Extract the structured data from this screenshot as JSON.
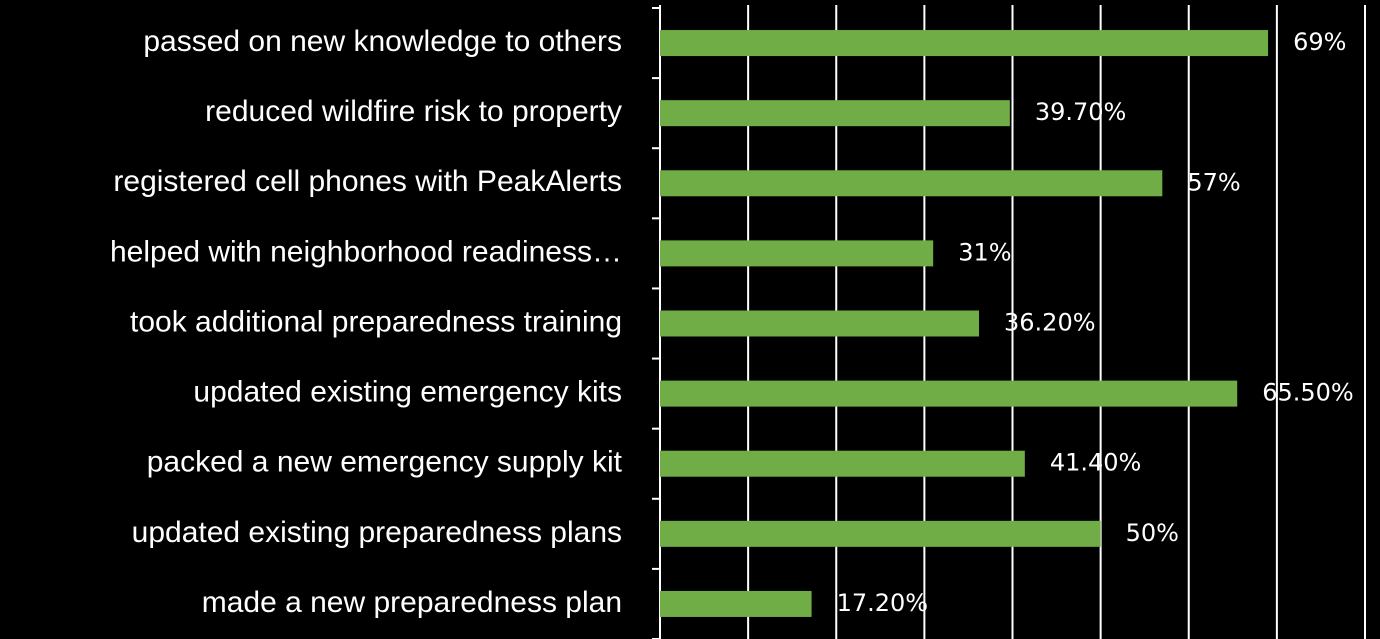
{
  "chart_data": {
    "type": "bar",
    "orientation": "horizontal",
    "categories": [
      "passed on new knowledge to others",
      "reduced wildfire risk to property",
      "registered cell phones with PeakAlerts",
      "helped with neighborhood readiness…",
      "took additional preparedness training",
      "updated existing emergency kits",
      "packed a new emergency supply kit",
      "updated existing preparedness plans",
      "made a new  preparedness plan"
    ],
    "values": [
      69,
      39.7,
      57,
      31,
      36.2,
      65.5,
      41.4,
      50,
      17.2
    ],
    "value_labels": [
      "69%",
      "39.70%",
      "57%",
      "31%",
      "36.20%",
      "65.50%",
      "41.40%",
      "50%",
      "17.20%"
    ],
    "color": "#70ad47",
    "xlim": [
      0,
      80
    ],
    "xticks": [
      0,
      10,
      20,
      30,
      40,
      50,
      60,
      70,
      80
    ],
    "grid": true
  }
}
